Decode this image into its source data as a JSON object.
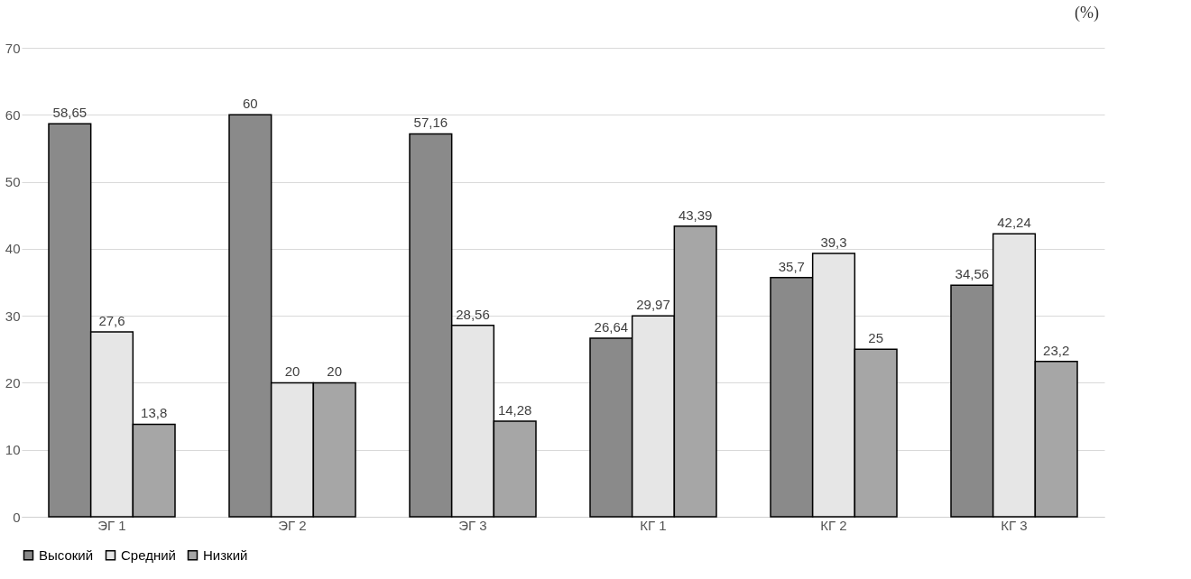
{
  "chart_data": {
    "type": "bar",
    "ylabel": "(%)",
    "categories": [
      "ЭГ 1",
      "ЭГ 2",
      "ЭГ 3",
      "КГ 1",
      "КГ 2",
      "КГ 3"
    ],
    "series": [
      {
        "name": "Высокий",
        "color": "#8a8a8a",
        "values": [
          58.65,
          60,
          57.16,
          26.64,
          35.7,
          34.56
        ],
        "value_labels": [
          "58,65",
          "60",
          "57,16",
          "26,64",
          "35,7",
          "34,56"
        ]
      },
      {
        "name": "Средний",
        "color": "#e6e6e6",
        "values": [
          27.6,
          20,
          28.56,
          29.97,
          39.3,
          42.24
        ],
        "value_labels": [
          "27,6",
          "20",
          "28,56",
          "29,97",
          "39,3",
          "42,24"
        ]
      },
      {
        "name": "Низкий",
        "color": "#a6a6a6",
        "values": [
          13.8,
          20,
          14.28,
          43.39,
          25,
          23.2
        ],
        "value_labels": [
          "13,8",
          "20",
          "14,28",
          "43,39",
          "25",
          "23,2"
        ]
      }
    ],
    "ylim": [
      0,
      70
    ],
    "yticks": [
      0,
      10,
      20,
      30,
      40,
      50,
      60,
      70
    ],
    "grid": "y",
    "legend": "bottom"
  }
}
